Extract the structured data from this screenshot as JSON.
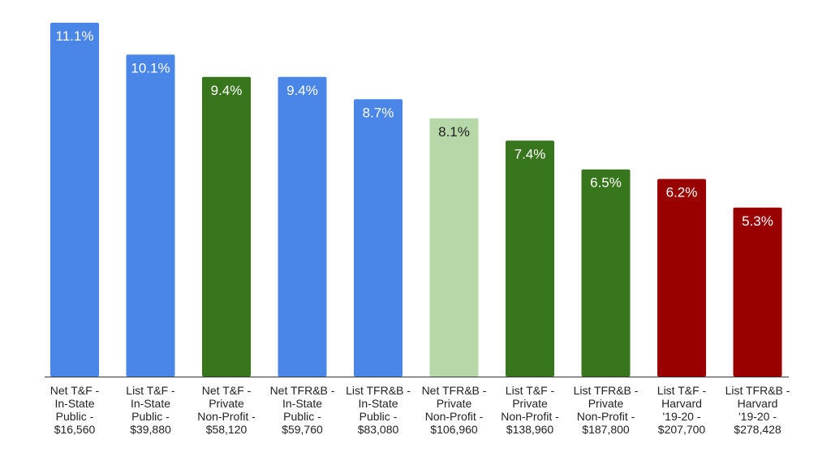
{
  "chart_data": {
    "type": "bar",
    "title": "",
    "xlabel": "",
    "ylabel": "",
    "grid": false,
    "legend": "none",
    "ylim": [
      0,
      11.1
    ],
    "categories": [
      [
        "Net T&F -",
        "In-State",
        "Public -",
        "$16,560"
      ],
      [
        "List T&F -",
        "In-State",
        "Public -",
        "$39,880"
      ],
      [
        "Net T&F -",
        "Private",
        "Non-Profit -",
        "$58,120"
      ],
      [
        "Net TFR&B -",
        "In-State",
        "Public -",
        "$59,760"
      ],
      [
        "List TFR&B -",
        "In-State",
        "Public -",
        "$83,080"
      ],
      [
        "Net TFR&B -",
        "Private",
        "Non-Profit -",
        "$106,960"
      ],
      [
        "List T&F -",
        "Private",
        "Non-Profit -",
        "$138,960"
      ],
      [
        "List TFR&B -",
        "Private",
        "Non-Profit -",
        "$187,800"
      ],
      [
        "List T&F -",
        "Harvard",
        "'19-20 -",
        "$207,700"
      ],
      [
        "List TFR&B -",
        "Harvard",
        "'19-20 -",
        "$278,428"
      ]
    ],
    "values": [
      11.1,
      10.1,
      9.4,
      9.4,
      8.7,
      8.1,
      7.4,
      6.5,
      6.2,
      5.3
    ],
    "data_labels": [
      "11.1%",
      "10.1%",
      "9.4%",
      "9.4%",
      "8.7%",
      "8.1%",
      "7.4%",
      "6.5%",
      "6.2%",
      "5.3%"
    ],
    "bar_colors": [
      "#4a86e8",
      "#4a86e8",
      "#38761d",
      "#4a86e8",
      "#4a86e8",
      "#b6d7a8",
      "#38761d",
      "#38761d",
      "#990000",
      "#990000"
    ],
    "label_colors": [
      "#ffffff",
      "#ffffff",
      "#ffffff",
      "#ffffff",
      "#ffffff",
      "#222222",
      "#ffffff",
      "#ffffff",
      "#ffffff",
      "#ffffff"
    ],
    "axis_color": "#333333"
  }
}
